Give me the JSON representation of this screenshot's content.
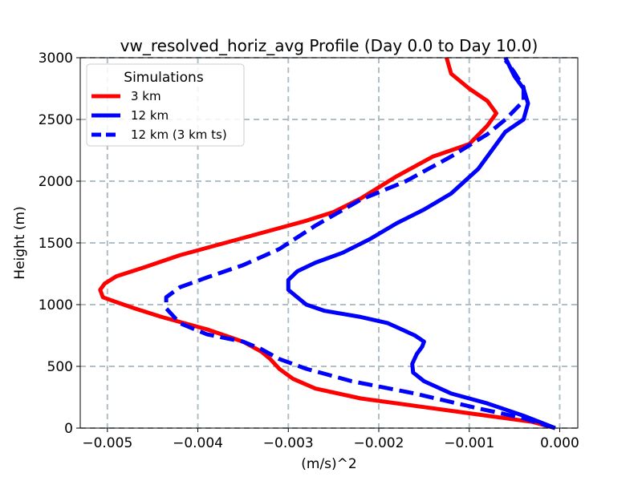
{
  "chart_data": {
    "type": "line",
    "title": "vw_resolved_horiz_avg Profile (Day 0.0 to Day 10.0)",
    "xlabel": "(m/s)^2",
    "ylabel": "Height (m)",
    "xlim": [
      -0.0053,
      0.0002
    ],
    "ylim": [
      0,
      3000
    ],
    "xticks": [
      -0.005,
      -0.004,
      -0.003,
      -0.002,
      -0.001,
      0.0
    ],
    "xtick_labels": [
      "−0.005",
      "−0.004",
      "−0.003",
      "−0.002",
      "−0.001",
      "0.000"
    ],
    "yticks": [
      0,
      500,
      1000,
      1500,
      2000,
      2500,
      3000
    ],
    "ytick_labels": [
      "0",
      "500",
      "1000",
      "1500",
      "2000",
      "2500",
      "3000"
    ],
    "grid": true,
    "legend": {
      "title": "Simulations",
      "position": "upper-left"
    },
    "series": [
      {
        "name": "3 km",
        "color": "#ff0000",
        "style": "solid",
        "x": [
          -5e-05,
          -0.0003,
          -0.0008,
          -0.0015,
          -0.0022,
          -0.0027,
          -0.00295,
          -0.0031,
          -0.0032,
          -0.0033,
          -0.0035,
          -0.0039,
          -0.0044,
          -0.0047,
          -0.0049,
          -0.00505,
          -0.00508,
          -0.00503,
          -0.0049,
          -0.0046,
          -0.0042,
          -0.0037,
          -0.0032,
          -0.0028,
          -0.0025,
          -0.0022,
          -0.0018,
          -0.0014,
          -0.001,
          -0.0008,
          -0.0007,
          -0.0008,
          -0.001,
          -0.0012,
          -0.00125
        ],
        "y": [
          0,
          50,
          100,
          170,
          240,
          320,
          400,
          480,
          560,
          620,
          700,
          800,
          900,
          970,
          1020,
          1060,
          1120,
          1170,
          1230,
          1300,
          1400,
          1500,
          1600,
          1680,
          1750,
          1860,
          2040,
          2200,
          2300,
          2450,
          2550,
          2650,
          2750,
          2870,
          3000
        ]
      },
      {
        "name": "12 km",
        "color": "#0000ff",
        "style": "solid",
        "x": [
          -5e-05,
          -0.0004,
          -0.0008,
          -0.0012,
          -0.0015,
          -0.00162,
          -0.00163,
          -0.00158,
          -0.00152,
          -0.0015,
          -0.0016,
          -0.0019,
          -0.0022,
          -0.0026,
          -0.0028,
          -0.0029,
          -0.003,
          -0.003,
          -0.0029,
          -0.0027,
          -0.0024,
          -0.0021,
          -0.0018,
          -0.0015,
          -0.0012,
          -0.0009,
          -0.0006,
          -0.0004,
          -0.00035,
          -0.0004,
          -0.0005,
          -0.0006
        ],
        "y": [
          0,
          100,
          200,
          280,
          380,
          450,
          520,
          600,
          660,
          700,
          750,
          850,
          900,
          950,
          1000,
          1060,
          1120,
          1200,
          1270,
          1340,
          1420,
          1530,
          1660,
          1770,
          1900,
          2100,
          2400,
          2500,
          2630,
          2750,
          2850,
          3000
        ]
      },
      {
        "name": "12 km (3 km ts)",
        "color": "#0000ff",
        "style": "dashed",
        "x": [
          -5e-05,
          -0.0004,
          -0.0009,
          -0.0016,
          -0.0023,
          -0.0028,
          -0.0031,
          -0.0033,
          -0.0035,
          -0.0039,
          -0.0042,
          -0.00435,
          -0.00435,
          -0.0042,
          -0.0039,
          -0.0035,
          -0.0031,
          -0.0027,
          -0.0022,
          -0.0017,
          -0.0012,
          -0.0008,
          -0.0006,
          -0.0004,
          -0.0004,
          -0.0005,
          -0.0006
        ],
        "y": [
          0,
          80,
          160,
          280,
          380,
          480,
          560,
          640,
          700,
          760,
          850,
          970,
          1060,
          1140,
          1220,
          1320,
          1450,
          1640,
          1850,
          2000,
          2200,
          2380,
          2500,
          2650,
          2760,
          2880,
          2980
        ]
      }
    ]
  }
}
